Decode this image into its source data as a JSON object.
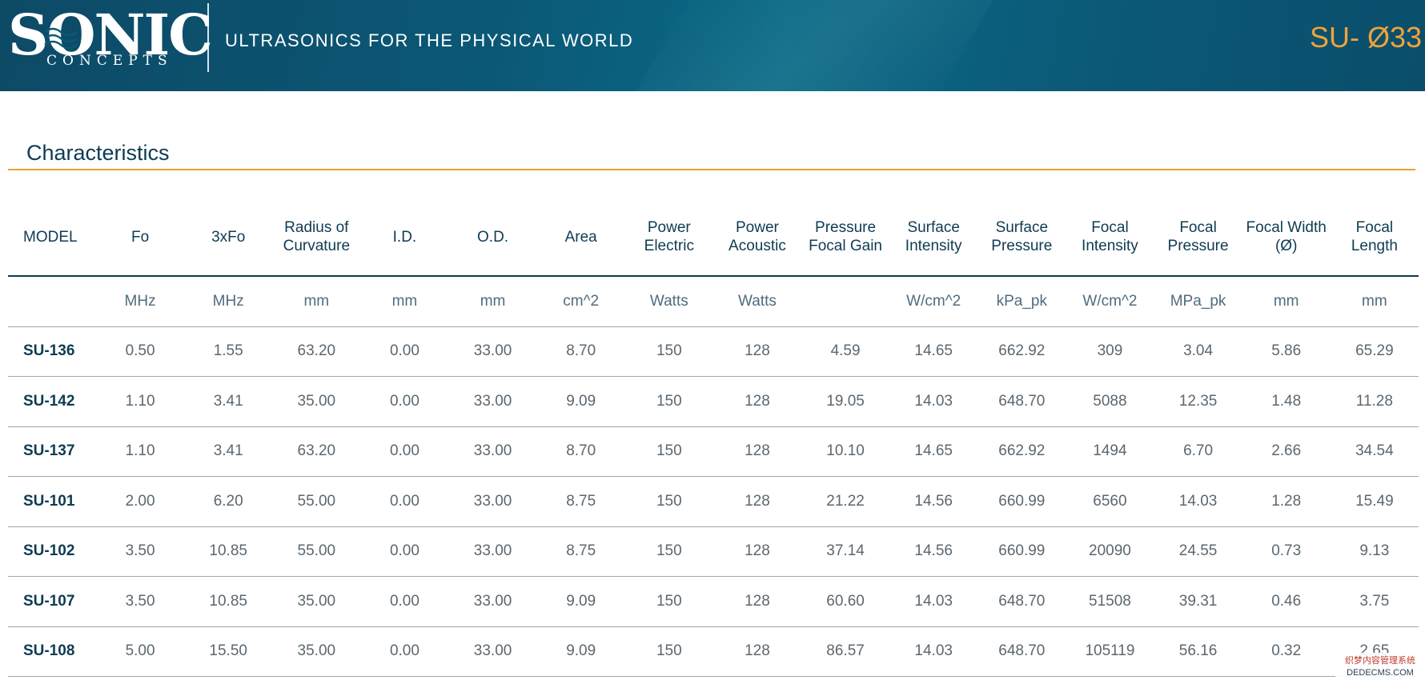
{
  "header": {
    "logo_main": "SONIC",
    "logo_sub": "CONCEPTS",
    "tagline": "ULTRASONICS FOR THE PHYSICAL WORLD",
    "model_code": "SU- Ø33"
  },
  "section": {
    "title": "Characteristics"
  },
  "table": {
    "headers": [
      "MODEL",
      "Fo",
      "3xFo",
      "Radius of Curvature",
      "I.D.",
      "O.D.",
      "Area",
      "Power Electric",
      "Power Acoustic",
      "Pressure Focal Gain",
      "Surface Intensity",
      "Surface Pressure",
      "Focal Intensity",
      "Focal Pressure",
      "Focal Width (Ø)",
      "Focal Length"
    ],
    "units": [
      "",
      "MHz",
      "MHz",
      "mm",
      "mm",
      "mm",
      "cm^2",
      "Watts",
      "Watts",
      "",
      "W/cm^2",
      "kPa_pk",
      "W/cm^2",
      "MPa_pk",
      "mm",
      "mm"
    ],
    "rows": [
      [
        "SU-136",
        "0.50",
        "1.55",
        "63.20",
        "0.00",
        "33.00",
        "8.70",
        "150",
        "128",
        "4.59",
        "14.65",
        "662.92",
        "309",
        "3.04",
        "5.86",
        "65.29"
      ],
      [
        "SU-142",
        "1.10",
        "3.41",
        "35.00",
        "0.00",
        "33.00",
        "9.09",
        "150",
        "128",
        "19.05",
        "14.03",
        "648.70",
        "5088",
        "12.35",
        "1.48",
        "11.28"
      ],
      [
        "SU-137",
        "1.10",
        "3.41",
        "63.20",
        "0.00",
        "33.00",
        "8.70",
        "150",
        "128",
        "10.10",
        "14.65",
        "662.92",
        "1494",
        "6.70",
        "2.66",
        "34.54"
      ],
      [
        "SU-101",
        "2.00",
        "6.20",
        "55.00",
        "0.00",
        "33.00",
        "8.75",
        "150",
        "128",
        "21.22",
        "14.56",
        "660.99",
        "6560",
        "14.03",
        "1.28",
        "15.49"
      ],
      [
        "SU-102",
        "3.50",
        "10.85",
        "55.00",
        "0.00",
        "33.00",
        "8.75",
        "150",
        "128",
        "37.14",
        "14.56",
        "660.99",
        "20090",
        "24.55",
        "0.73",
        "9.13"
      ],
      [
        "SU-107",
        "3.50",
        "10.85",
        "35.00",
        "0.00",
        "33.00",
        "9.09",
        "150",
        "128",
        "60.60",
        "14.03",
        "648.70",
        "51508",
        "39.31",
        "0.46",
        "3.75"
      ],
      [
        "SU-108",
        "5.00",
        "15.50",
        "35.00",
        "0.00",
        "33.00",
        "9.09",
        "150",
        "128",
        "86.57",
        "14.03",
        "648.70",
        "105119",
        "56.16",
        "0.32",
        "2.65"
      ]
    ]
  },
  "watermark": {
    "line1": "织梦内容管理系统",
    "line2": "DEDECMS.COM"
  },
  "colors": {
    "header_bg": "#0b5876",
    "accent_orange": "#f0a23a",
    "rule_orange": "#e8a03d",
    "text_dark": "#0f3b53",
    "text_gray": "#5b6770"
  }
}
